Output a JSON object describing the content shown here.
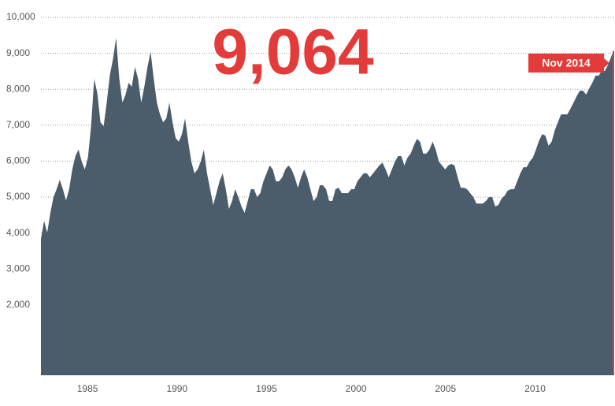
{
  "chart_data": {
    "type": "area",
    "annotation": "9,064",
    "highlight_label": "Nov 2014",
    "color": "#4b5d6b",
    "highlight_color": "#e23b39",
    "grid": true,
    "xlim": [
      1982.9,
      2014.875
    ],
    "ylim": [
      0,
      10000
    ],
    "yticks": [
      {
        "value": 2000,
        "label": "2,000"
      },
      {
        "value": 3000,
        "label": "3,000"
      },
      {
        "value": 4000,
        "label": "4,000"
      },
      {
        "value": 5000,
        "label": "5,000"
      },
      {
        "value": 6000,
        "label": "6,000"
      },
      {
        "value": 7000,
        "label": "7,000"
      },
      {
        "value": 8000,
        "label": "8,000"
      },
      {
        "value": 9000,
        "label": "9,000"
      },
      {
        "value": 10000,
        "label": "10,000"
      }
    ],
    "xticks": [
      {
        "value": 1985.5,
        "label": "1985"
      },
      {
        "value": 1990.5,
        "label": "1990"
      },
      {
        "value": 1995.5,
        "label": "1995"
      },
      {
        "value": 2000.5,
        "label": "2000"
      },
      {
        "value": 2005.5,
        "label": "2005"
      },
      {
        "value": 2010.5,
        "label": "2010"
      }
    ],
    "x": [
      1982.9,
      1983.075,
      1983.25,
      1983.425,
      1983.6,
      1983.775,
      1983.95,
      1984.125,
      1984.3,
      1984.475,
      1984.65,
      1984.825,
      1985,
      1985.175,
      1985.35,
      1985.525,
      1985.7,
      1985.875,
      1986.05,
      1986.225,
      1986.4,
      1986.575,
      1986.75,
      1986.925,
      1987.1,
      1987.275,
      1987.45,
      1987.625,
      1987.8,
      1987.975,
      1988.15,
      1988.325,
      1988.5,
      1988.675,
      1988.85,
      1989.025,
      1989.2,
      1989.375,
      1989.55,
      1989.725,
      1989.9,
      1990.075,
      1990.25,
      1990.425,
      1990.6,
      1990.775,
      1990.95,
      1991.125,
      1991.3,
      1991.475,
      1991.65,
      1991.825,
      1992,
      1992.175,
      1992.35,
      1992.525,
      1992.7,
      1992.875,
      1993.05,
      1993.225,
      1993.4,
      1993.575,
      1993.75,
      1993.925,
      1994.1,
      1994.275,
      1994.45,
      1994.625,
      1994.8,
      1994.975,
      1995.15,
      1995.325,
      1995.5,
      1995.675,
      1995.85,
      1996.025,
      1996.2,
      1996.375,
      1996.55,
      1996.725,
      1996.9,
      1997.075,
      1997.25,
      1997.425,
      1997.6,
      1997.775,
      1997.95,
      1998.125,
      1998.3,
      1998.475,
      1998.65,
      1998.825,
      1999,
      1999.175,
      1999.35,
      1999.525,
      1999.7,
      1999.875,
      2000.05,
      2000.225,
      2000.4,
      2000.575,
      2000.75,
      2000.925,
      2001.1,
      2001.275,
      2001.45,
      2001.625,
      2001.8,
      2001.975,
      2002.15,
      2002.325,
      2002.5,
      2002.675,
      2002.85,
      2003.025,
      2003.2,
      2003.375,
      2003.55,
      2003.725,
      2003.9,
      2004.075,
      2004.25,
      2004.425,
      2004.6,
      2004.775,
      2004.95,
      2005.125,
      2005.3,
      2005.475,
      2005.65,
      2005.825,
      2006,
      2006.175,
      2006.35,
      2006.525,
      2006.7,
      2006.875,
      2007.05,
      2007.225,
      2007.4,
      2007.575,
      2007.75,
      2007.925,
      2008.1,
      2008.275,
      2008.45,
      2008.625,
      2008.8,
      2008.975,
      2009.15,
      2009.325,
      2009.5,
      2009.675,
      2009.85,
      2010.025,
      2010.2,
      2010.375,
      2010.55,
      2010.725,
      2010.9,
      2011.075,
      2011.25,
      2011.425,
      2011.6,
      2011.775,
      2011.95,
      2012.125,
      2012.3,
      2012.475,
      2012.65,
      2012.825,
      2013,
      2013.175,
      2013.35,
      2013.525,
      2013.7,
      2013.875,
      2014.05,
      2014.225,
      2014.4,
      2014.575,
      2014.875
    ],
    "values": [
      3840,
      4340,
      4010,
      4560,
      5000,
      5220,
      5480,
      5220,
      4910,
      5220,
      5770,
      6140,
      6320,
      5990,
      5770,
      6100,
      6970,
      8290,
      7890,
      7080,
      6970,
      7630,
      8400,
      8840,
      9430,
      8300,
      7630,
      7850,
      8180,
      8070,
      8620,
      8290,
      7630,
      8070,
      8620,
      9040,
      8290,
      7630,
      7300,
      7080,
      7190,
      7630,
      7080,
      6640,
      6540,
      6750,
      7190,
      6540,
      5990,
      5660,
      5770,
      5990,
      6320,
      5660,
      5220,
      4780,
      5110,
      5440,
      5660,
      5220,
      4670,
      4890,
      5220,
      5000,
      4740,
      4560,
      4890,
      5220,
      5220,
      5000,
      5110,
      5440,
      5660,
      5880,
      5770,
      5440,
      5440,
      5550,
      5770,
      5880,
      5770,
      5550,
      5260,
      5550,
      5770,
      5550,
      5220,
      4890,
      5000,
      5330,
      5330,
      5220,
      4890,
      4890,
      5220,
      5260,
      5110,
      5110,
      5110,
      5220,
      5220,
      5440,
      5550,
      5660,
      5660,
      5550,
      5660,
      5770,
      5880,
      5960,
      5770,
      5550,
      5770,
      5990,
      6140,
      6140,
      5880,
      6100,
      6210,
      6430,
      6620,
      6540,
      6210,
      6210,
      6320,
      6540,
      6320,
      5990,
      5880,
      5770,
      5880,
      5920,
      5880,
      5550,
      5260,
      5260,
      5220,
      5110,
      5000,
      4820,
      4820,
      4820,
      4890,
      5000,
      5000,
      4740,
      4780,
      4960,
      5040,
      5180,
      5220,
      5220,
      5440,
      5660,
      5830,
      5830,
      5990,
      6100,
      6320,
      6580,
      6750,
      6710,
      6430,
      6540,
      6860,
      7080,
      7300,
      7300,
      7300,
      7460,
      7630,
      7810,
      7960,
      7960,
      7850,
      8030,
      8180,
      8380,
      8380,
      8510,
      8510,
      8680,
      9064
    ]
  }
}
